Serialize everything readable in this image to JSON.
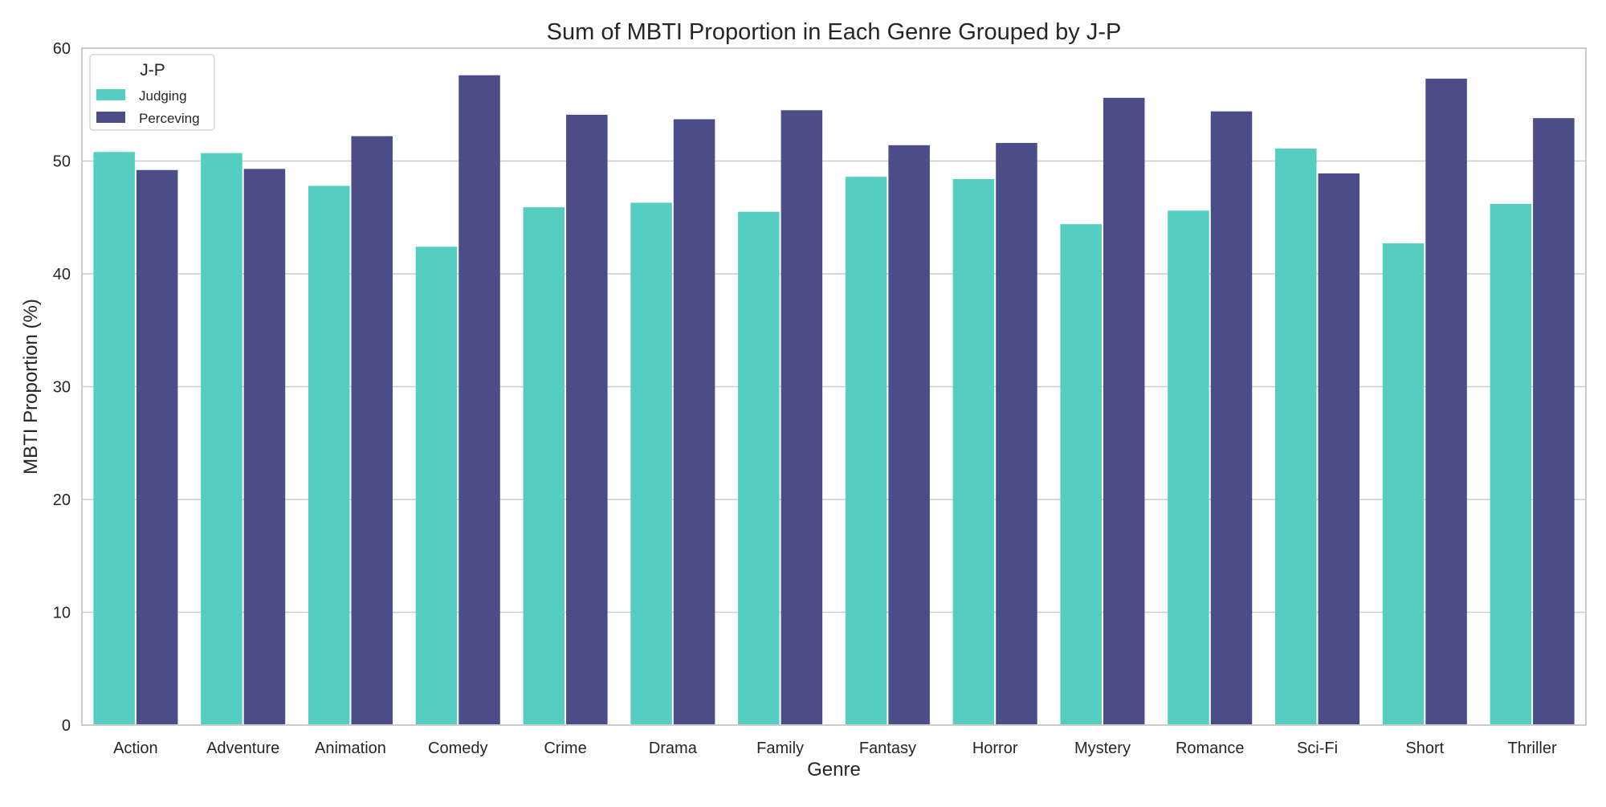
{
  "chart_data": {
    "type": "bar",
    "title": "Sum of MBTI Proportion in Each Genre Grouped by J-P",
    "xlabel": "Genre",
    "ylabel": "MBTI Proportion (%)",
    "ylim": [
      0,
      60
    ],
    "yticks": [
      0,
      10,
      20,
      30,
      40,
      50,
      60
    ],
    "grid": "horizontal",
    "legend": {
      "title": "J-P",
      "placement": "top-left"
    },
    "categories": [
      "Action",
      "Adventure",
      "Animation",
      "Comedy",
      "Crime",
      "Drama",
      "Family",
      "Fantasy",
      "Horror",
      "Mystery",
      "Romance",
      "Sci-Fi",
      "Short",
      "Thriller"
    ],
    "series": [
      {
        "name": "Judging",
        "color": "#55cdc1",
        "values": [
          50.8,
          50.7,
          47.8,
          42.4,
          45.9,
          46.3,
          45.5,
          48.6,
          48.4,
          44.4,
          45.6,
          51.1,
          42.7,
          46.2
        ]
      },
      {
        "name": "Perceving",
        "color": "#4b4d88",
        "values": [
          49.2,
          49.3,
          52.2,
          57.6,
          54.1,
          53.7,
          54.5,
          51.4,
          51.6,
          55.6,
          54.4,
          48.9,
          57.3,
          53.8
        ]
      }
    ]
  }
}
